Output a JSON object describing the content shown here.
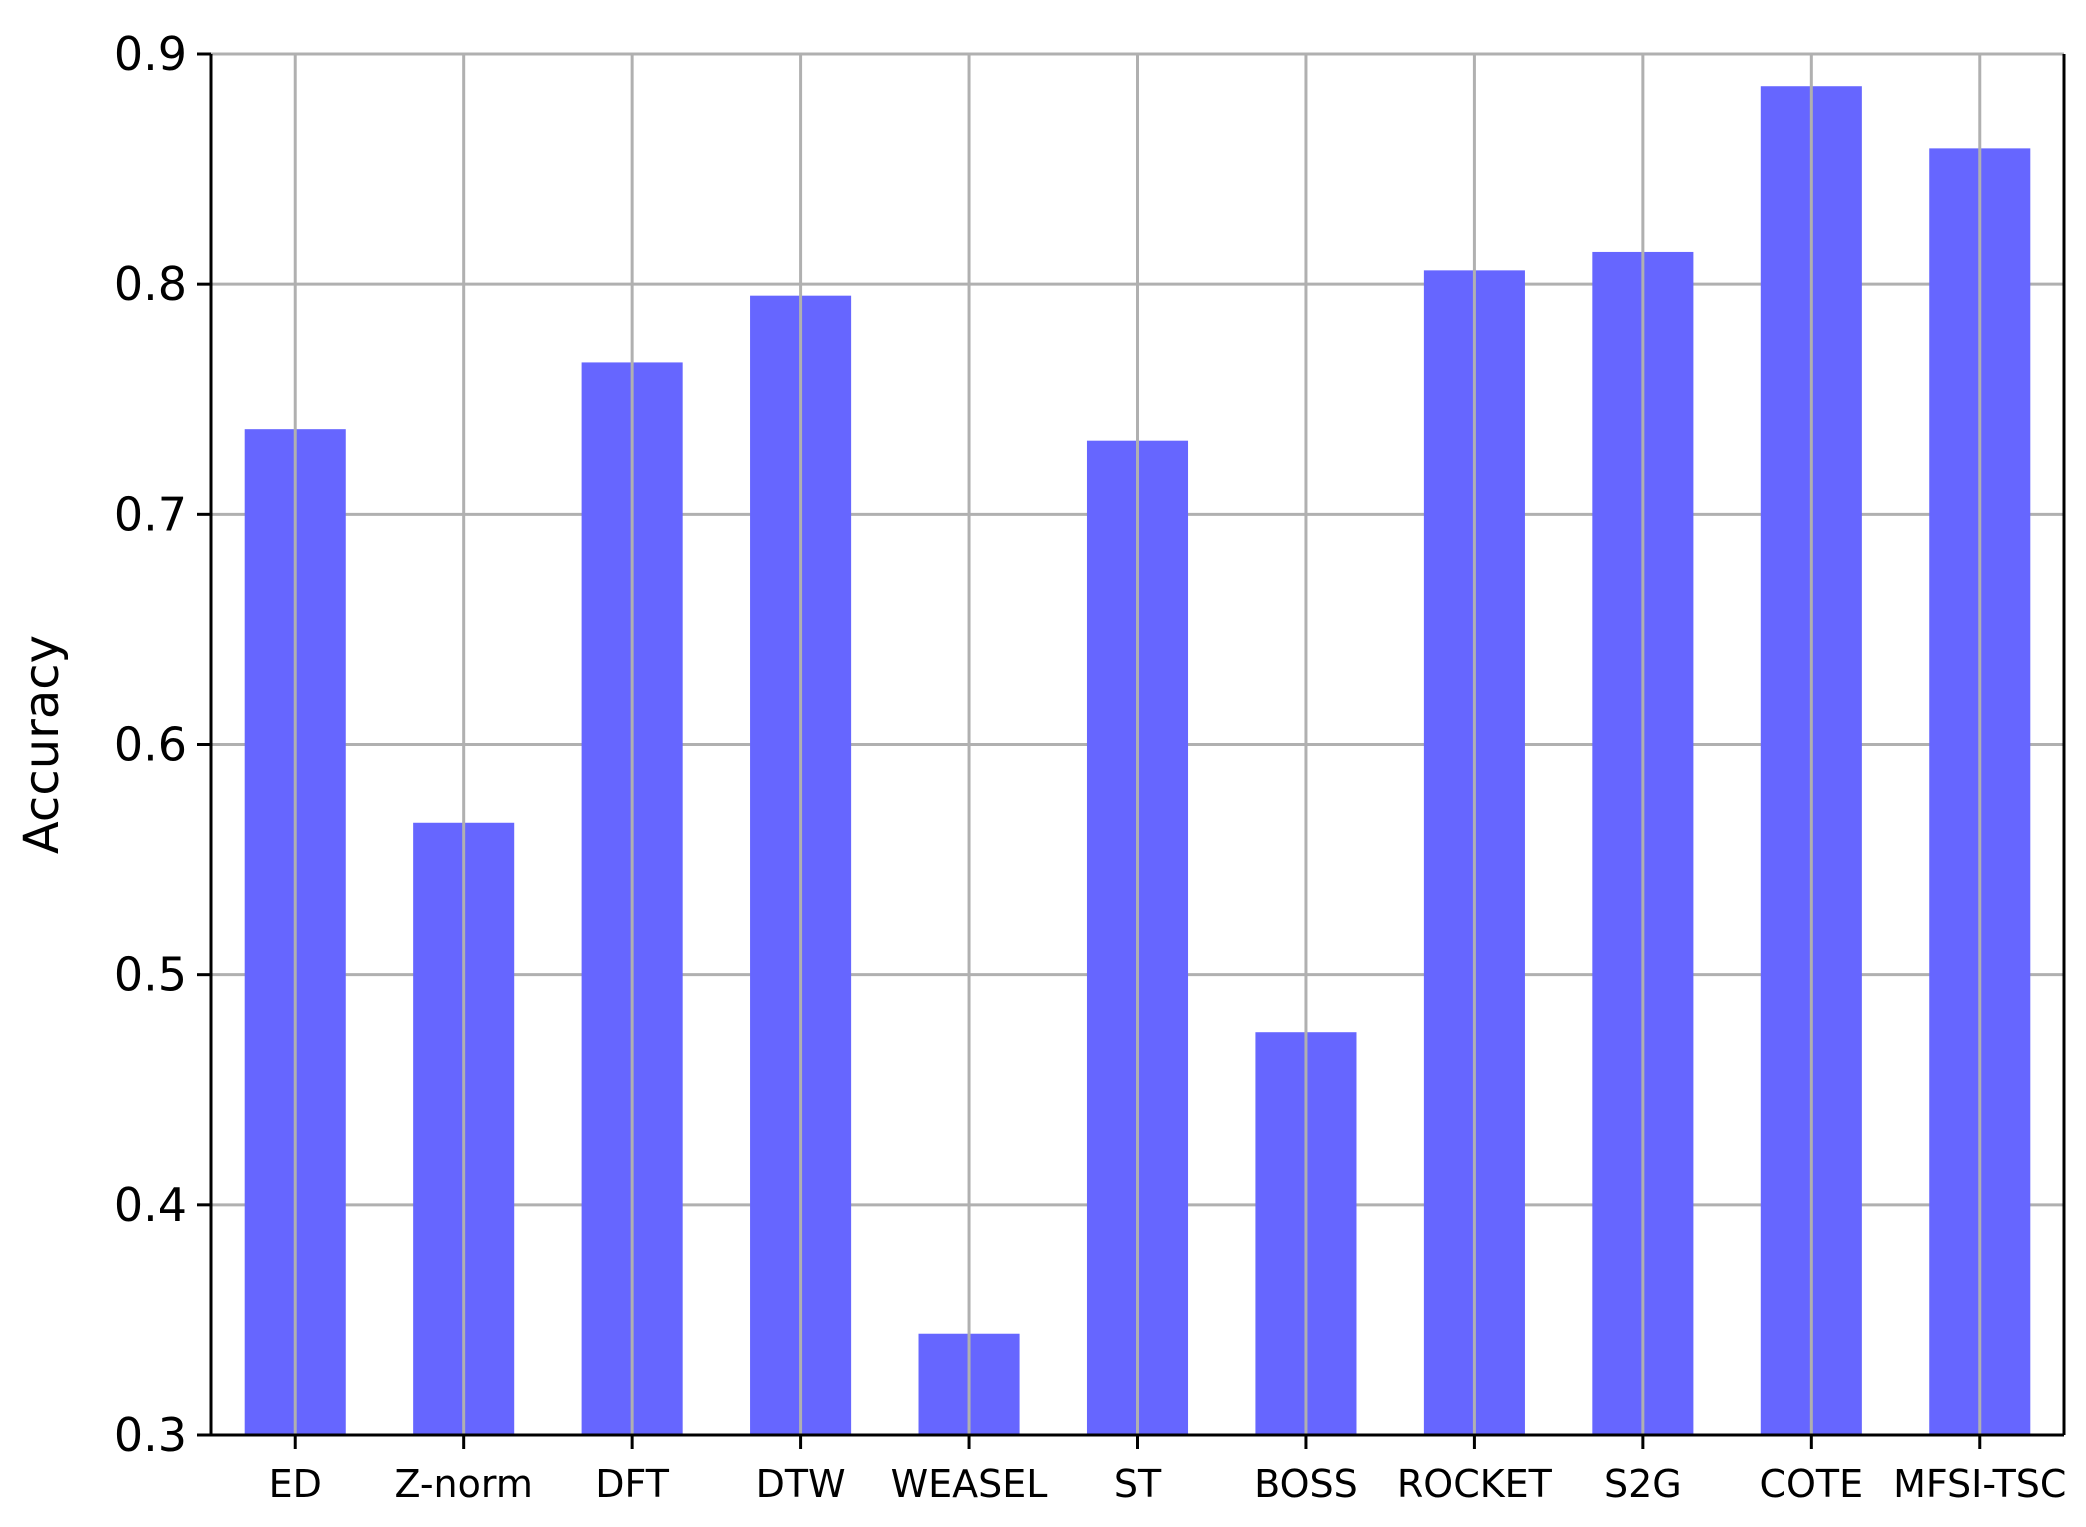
{
  "chart_data": {
    "type": "bar",
    "title": "",
    "xlabel": "",
    "ylabel": "Accuracy",
    "categories": [
      "ED",
      "Z-norm",
      "DFT",
      "DTW",
      "WEASEL",
      "ST",
      "BOSS",
      "ROCKET",
      "S2G",
      "COTE",
      "MFSI-TSC"
    ],
    "values": [
      0.737,
      0.566,
      0.766,
      0.795,
      0.344,
      0.732,
      0.475,
      0.806,
      0.814,
      0.886,
      0.859
    ],
    "ylim": [
      0.3,
      0.9
    ],
    "yticks": [
      "0.3",
      "0.4",
      "0.5",
      "0.6",
      "0.7",
      "0.8",
      "0.9"
    ],
    "grid": true,
    "bar_color": "#6666ff",
    "grid_color": "#b0b0b0"
  }
}
